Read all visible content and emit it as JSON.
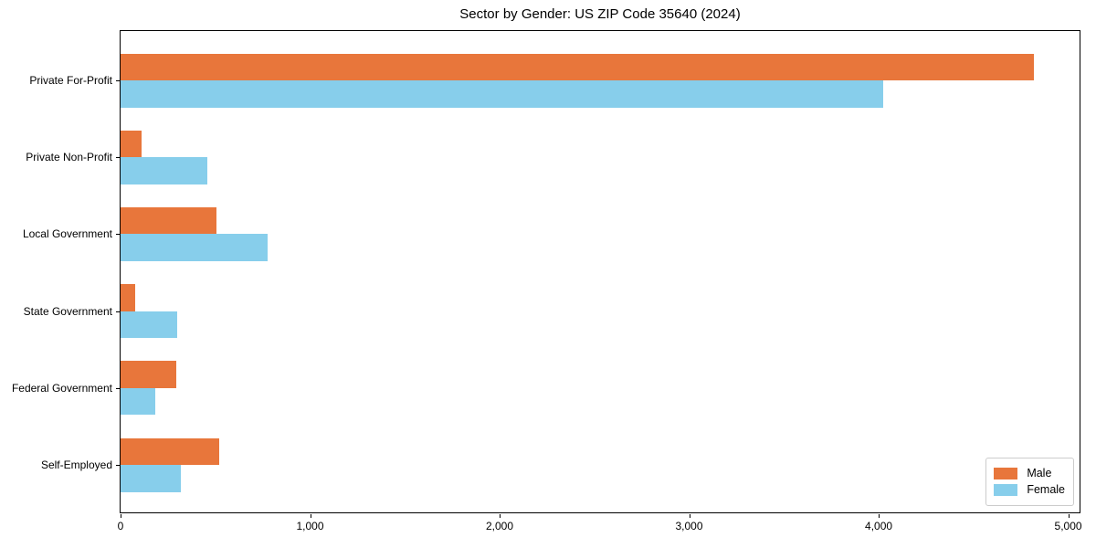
{
  "figure": {
    "background": "#FFFFFF"
  },
  "chart_data": {
    "type": "bar",
    "orientation": "horizontal",
    "title": "Sector by Gender: US ZIP Code 35640 (2024)",
    "xlabel": "",
    "ylabel": "",
    "categories": [
      "Private For-Profit",
      "Private Non-Profit",
      "Local Government",
      "State Government",
      "Federal Government",
      "Self-Employed"
    ],
    "series": [
      {
        "name": "Male",
        "color": "#E8763B",
        "values": [
          4820,
          110,
          505,
          75,
          295,
          520
        ]
      },
      {
        "name": "Female",
        "color": "#87CEEB",
        "values": [
          4025,
          460,
          775,
          300,
          185,
          320
        ]
      }
    ],
    "xlim": [
      0,
      5060
    ],
    "x_ticks": [
      0,
      1000,
      2000,
      3000,
      4000,
      5000
    ],
    "x_tick_labels": [
      "0",
      "1,000",
      "2,000",
      "3,000",
      "4,000",
      "5,000"
    ],
    "grid": false,
    "legend": {
      "position": "lower-right",
      "entries": [
        "Male",
        "Female"
      ]
    }
  }
}
